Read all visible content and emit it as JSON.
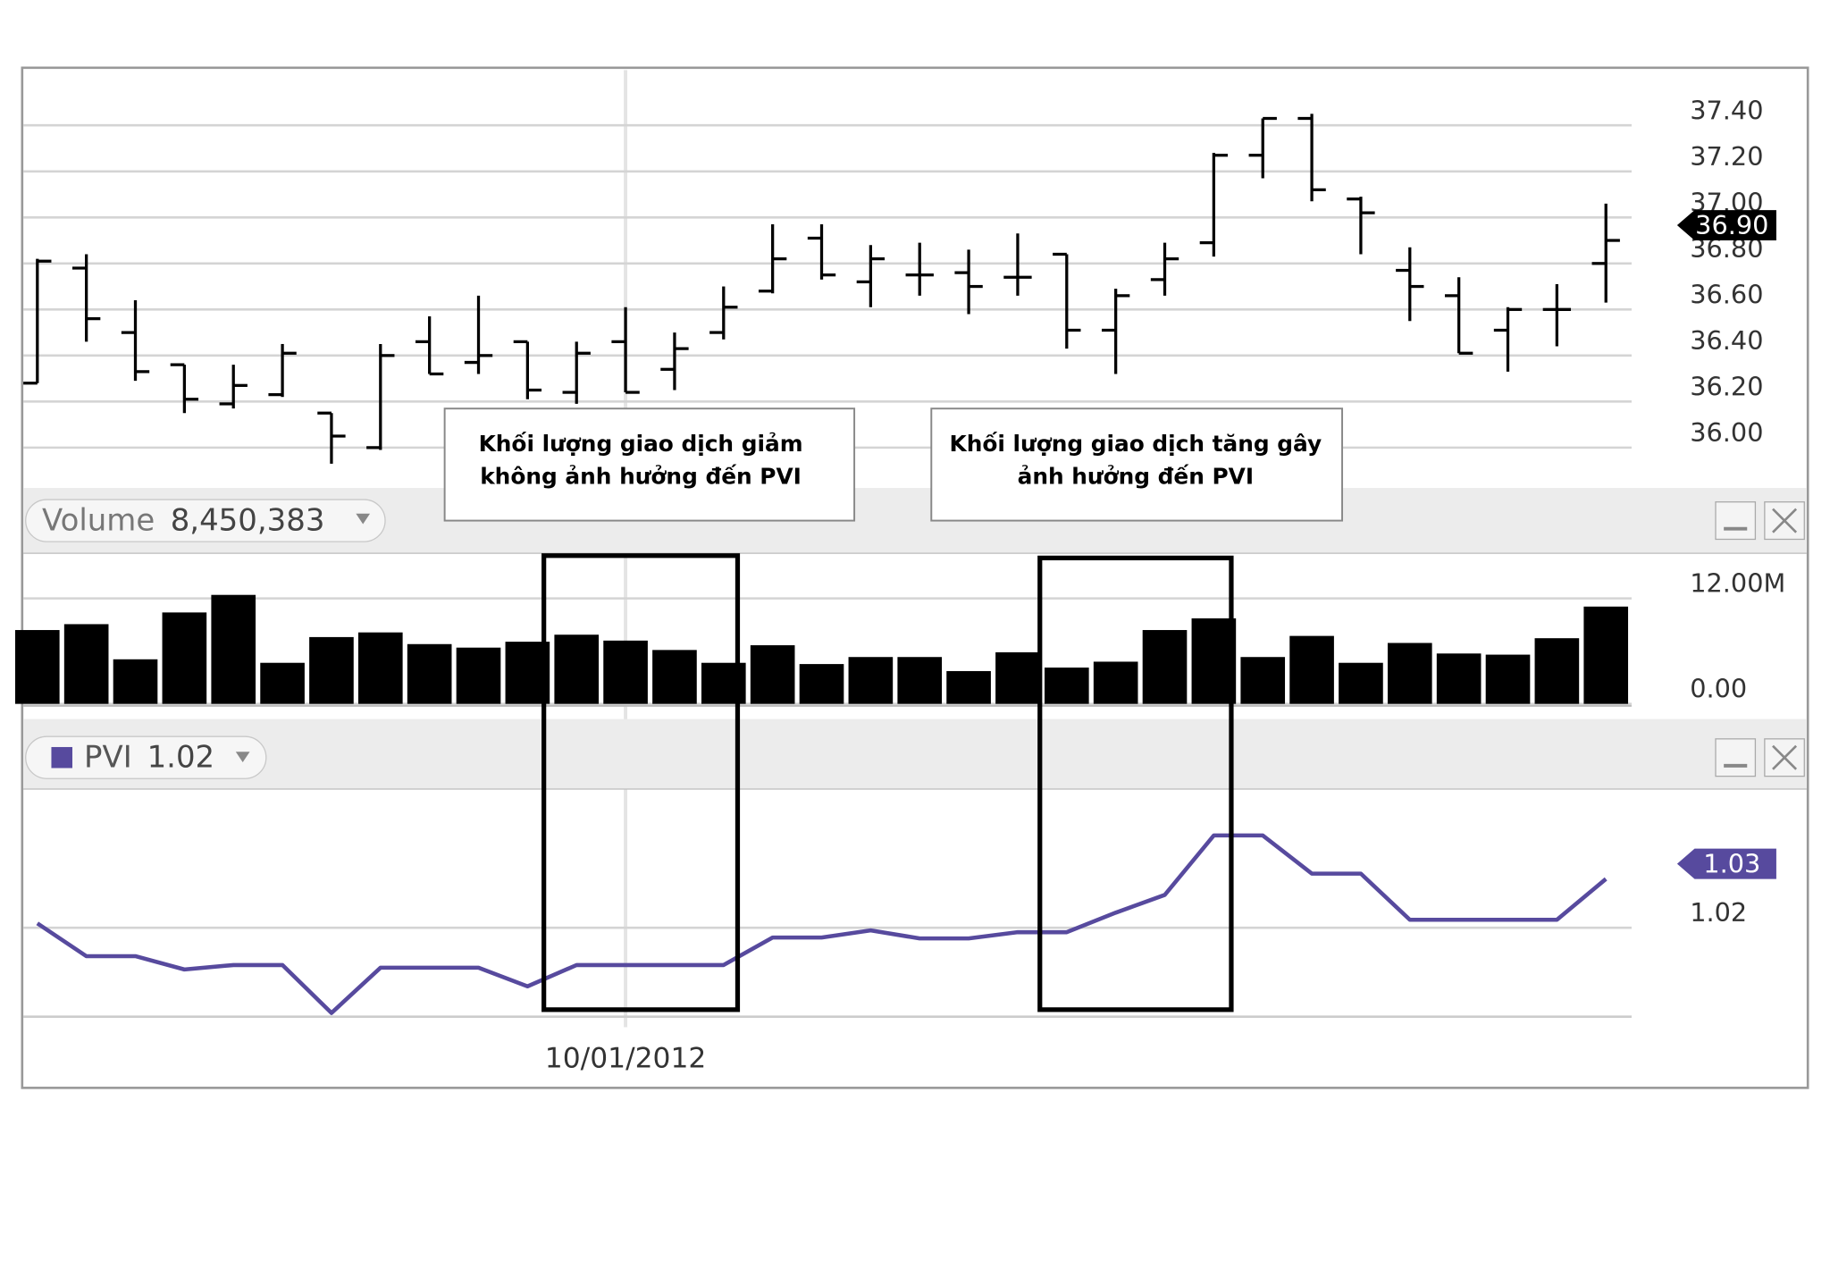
{
  "chart_data": [
    {
      "type": "ohlc",
      "color": "#000000",
      "grid": true,
      "open": [
        36.28,
        36.78,
        36.5,
        36.36,
        36.19,
        36.23,
        36.15,
        36.0,
        36.46,
        36.37,
        36.46,
        36.24,
        36.46,
        36.34,
        36.5,
        36.68,
        36.91,
        36.72,
        36.75,
        36.76,
        36.74,
        36.84,
        36.51,
        36.73,
        36.89,
        37.27,
        37.43,
        37.08,
        36.77,
        36.66,
        36.51,
        36.6,
        36.8
      ],
      "high": [
        36.82,
        36.84,
        36.64,
        36.36,
        36.36,
        36.45,
        36.15,
        36.45,
        36.57,
        36.66,
        36.46,
        36.46,
        36.61,
        36.5,
        36.7,
        36.97,
        36.97,
        36.88,
        36.89,
        36.86,
        36.93,
        36.84,
        36.69,
        36.89,
        37.28,
        37.43,
        37.45,
        37.09,
        36.87,
        36.74,
        36.61,
        36.71,
        37.06
      ],
      "low": [
        36.28,
        36.46,
        36.29,
        36.15,
        36.17,
        36.22,
        35.93,
        35.99,
        36.32,
        36.32,
        36.21,
        36.19,
        36.24,
        36.25,
        36.47,
        36.67,
        36.73,
        36.61,
        36.66,
        36.58,
        36.66,
        36.43,
        36.32,
        36.66,
        36.83,
        37.17,
        37.07,
        36.84,
        36.55,
        36.41,
        36.33,
        36.44,
        36.63
      ],
      "close": [
        36.81,
        36.56,
        36.33,
        36.21,
        36.27,
        36.41,
        36.05,
        36.4,
        36.32,
        36.4,
        36.25,
        36.41,
        36.24,
        36.43,
        36.61,
        36.82,
        36.75,
        36.82,
        36.75,
        36.7,
        36.74,
        36.51,
        36.66,
        36.82,
        37.27,
        37.43,
        37.12,
        37.02,
        36.7,
        36.41,
        36.6,
        36.6,
        36.9
      ],
      "ylim": [
        35.84,
        37.64
      ],
      "yticks": [
        {
          "value": 36.0,
          "label": "36.00"
        },
        {
          "value": 36.2,
          "label": "36.20"
        },
        {
          "value": 36.4,
          "label": "36.40"
        },
        {
          "value": 36.6,
          "label": "36.60"
        },
        {
          "value": 36.8,
          "label": "36.80"
        },
        {
          "value": 37.0,
          "label": "37.00"
        },
        {
          "value": 37.2,
          "label": "37.20"
        },
        {
          "value": 37.4,
          "label": "37.40"
        }
      ],
      "last_value": {
        "value": 36.9,
        "label": "36.90"
      },
      "annotations": [
        {
          "lines": [
            "Khối lượng giao dịch giảm",
            "không ảnh hưởng đến PVI"
          ]
        },
        {
          "lines": [
            "Khối lượng giao dịch tăng gây",
            "ảnh hưởng đến PVI"
          ]
        }
      ]
    },
    {
      "type": "bar",
      "title": "Volume",
      "title_value": {
        "value": 8450383,
        "label": "8,450,383"
      },
      "color": "#000000",
      "grid": true,
      "values": [
        8400000,
        9070000,
        5070000,
        10400000,
        12400000,
        4670000,
        7600000,
        8130000,
        6800000,
        6400000,
        7070000,
        7870000,
        7200000,
        6130000,
        4670000,
        6670000,
        4530000,
        5330000,
        5330000,
        3730000,
        5870000,
        4130000,
        4800000,
        8400000,
        9730000,
        5330000,
        7730000,
        4670000,
        6930000,
        5730000,
        5600000,
        7470000,
        11070000
      ],
      "ylim": [
        0,
        17000000
      ],
      "yticks": [
        {
          "value": 0,
          "label": "0.00"
        },
        {
          "value": 12000000,
          "label": "12.00M"
        }
      ]
    },
    {
      "type": "line",
      "title": "PVI",
      "title_value": 1.02,
      "color": "#574a9e",
      "grid": true,
      "categories": [
        null,
        null,
        null,
        null,
        null,
        null,
        null,
        null,
        null,
        null,
        null,
        null,
        "10/01/2012",
        null,
        null,
        null,
        null,
        null,
        null,
        null,
        null,
        null,
        null,
        null,
        null,
        null,
        null,
        null,
        null,
        null,
        null,
        null,
        null
      ],
      "values": [
        1.0205,
        1.0168,
        1.0168,
        1.0153,
        1.0158,
        1.0158,
        1.0104,
        1.0155,
        1.0155,
        1.0155,
        1.0134,
        1.0158,
        1.0158,
        1.0158,
        1.0158,
        1.0189,
        1.0189,
        1.0197,
        1.0188,
        1.0188,
        1.0195,
        1.0195,
        1.0217,
        1.0237,
        1.0304,
        1.0304,
        1.0261,
        1.0261,
        1.0209,
        1.0209,
        1.0209,
        1.0209,
        1.0255
      ],
      "ylim": [
        1.0088,
        1.0351
      ],
      "yticks": [
        1.02
      ],
      "last_value": {
        "value": 1.0255,
        "label": "1.03"
      }
    }
  ]
}
